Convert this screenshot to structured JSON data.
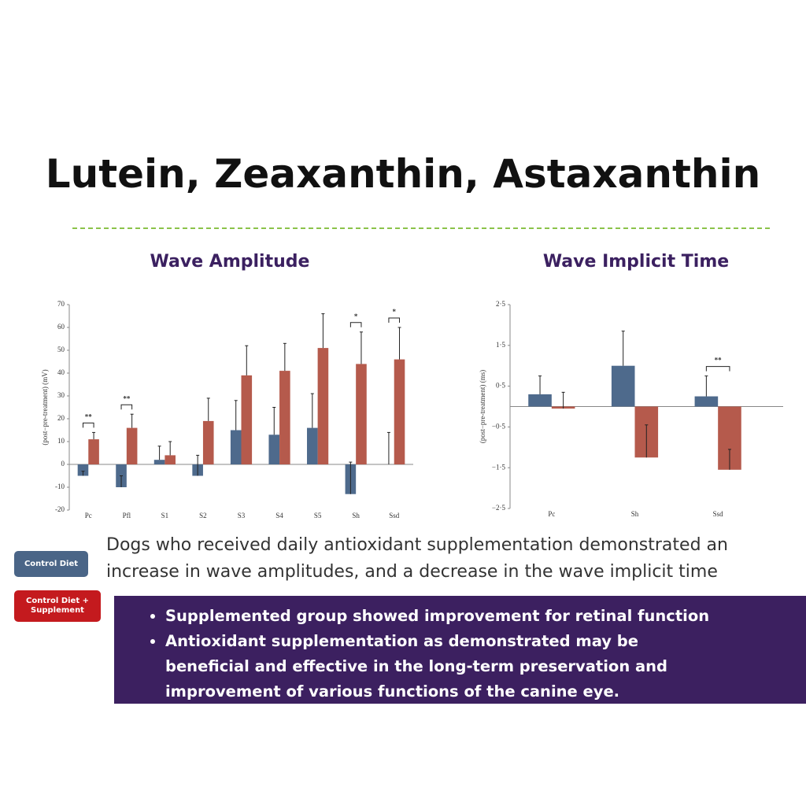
{
  "title": "Lutein, Zeaxanthin, Astaxanthin",
  "legend": [
    {
      "label": "Control Diet",
      "color": "#4a6587"
    },
    {
      "label": "Control Diet + Supplement",
      "color": "#c41a1e"
    }
  ],
  "summary": "Dogs who received daily antioxidant supplementation demonstrated an increase in wave amplitudes, and a decrease in the wave implicit time",
  "bullets": [
    "Supplemented group showed improvement for retinal function",
    "Antioxidant supplementation as demonstrated may be beneficial and effective in the long-term preservation and improvement of various functions of the canine eye."
  ],
  "chart_data": [
    {
      "type": "bar",
      "title": "Wave Amplitude",
      "y_label": "(post−pre-treatment) (mV)",
      "categories": [
        "Pc",
        "Pfl",
        "S1",
        "S2",
        "S3",
        "S4",
        "S5",
        "Sh",
        "Ssd"
      ],
      "series": [
        {
          "color": "#4e6a8c",
          "values": [
            -5,
            -10,
            2,
            -5,
            15,
            13,
            16,
            -13,
            0
          ],
          "errors": [
            2,
            5,
            6,
            9,
            13,
            12,
            15,
            14,
            14
          ]
        },
        {
          "color": "#b55a4c",
          "values": [
            11,
            16,
            4,
            19,
            39,
            41,
            51,
            44,
            46
          ],
          "errors": [
            3,
            6,
            6,
            10,
            13,
            12,
            15,
            14,
            14
          ]
        }
      ],
      "ylim": [
        -20,
        70
      ],
      "yticks": [
        -20,
        -10,
        0,
        10,
        20,
        30,
        40,
        50,
        60,
        70
      ],
      "significance": [
        {
          "category": "Pc",
          "label": "**"
        },
        {
          "category": "Pfl",
          "label": "**"
        },
        {
          "category": "Sh",
          "label": "*"
        },
        {
          "category": "Ssd",
          "label": "*"
        }
      ]
    },
    {
      "type": "bar",
      "title": "Wave Implicit Time",
      "y_label": "(post−pre-treatment) (ms)",
      "categories": [
        "Pc",
        "Sh",
        "Ssd"
      ],
      "series": [
        {
          "color": "#4e6a8c",
          "values": [
            0.3,
            1.0,
            0.25
          ],
          "errors": [
            0.45,
            0.85,
            0.5
          ]
        },
        {
          "color": "#b55a4c",
          "values": [
            -0.05,
            -1.25,
            -1.55
          ],
          "errors": [
            0.4,
            0.8,
            0.5
          ]
        }
      ],
      "ylim": [
        -2.5,
        2.5
      ],
      "yticks": [
        {
          "value": -2.5,
          "label": "−2·5"
        },
        {
          "value": -1.5,
          "label": "−1·5"
        },
        {
          "value": -0.5,
          "label": "−0·5"
        },
        {
          "value": 0.5,
          "label": "0·5"
        },
        {
          "value": 1.5,
          "label": "1·5"
        },
        {
          "value": 2.5,
          "label": "2·5"
        }
      ],
      "significance": [
        {
          "category": "Ssd",
          "label": "**"
        }
      ]
    }
  ]
}
